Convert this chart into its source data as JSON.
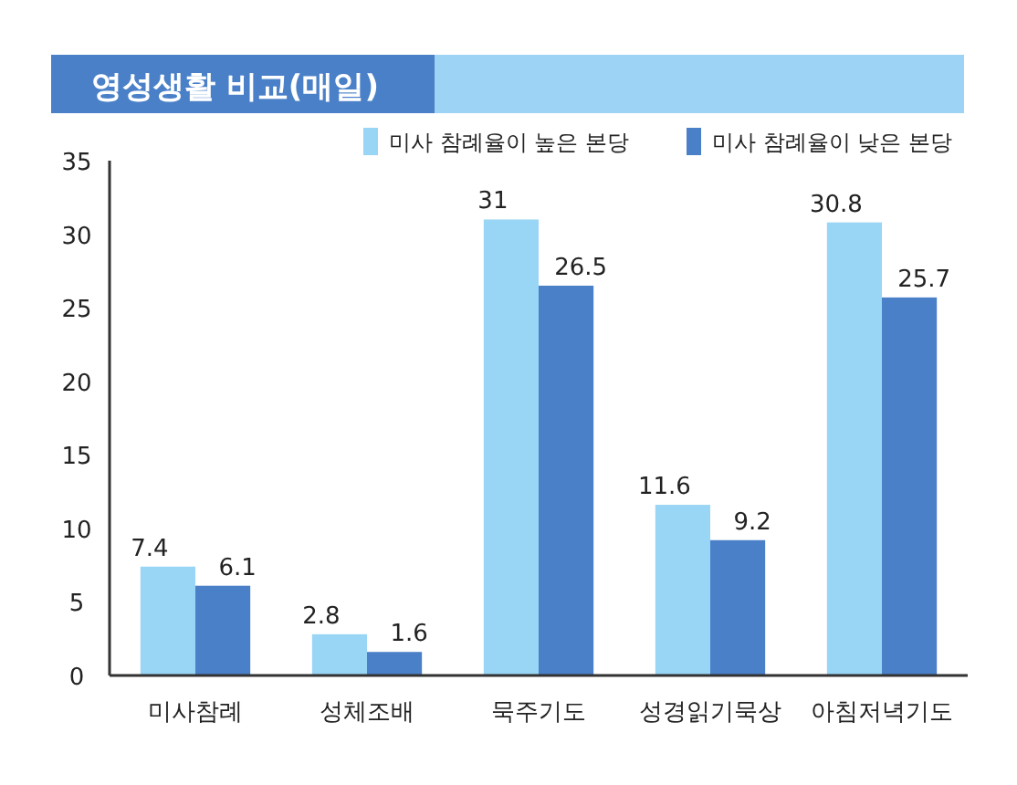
{
  "chart_data": {
    "type": "bar",
    "title": "영성생활 비교(매일)",
    "categories": [
      "미사참례",
      "성체조배",
      "묵주기도",
      "성경읽기묵상",
      "아침저녁기도"
    ],
    "series": [
      {
        "name": "미사 참례율이 높은 본당",
        "color": "#99d5f5",
        "values": [
          7.4,
          2.8,
          31,
          11.6,
          30.8
        ]
      },
      {
        "name": "미사 참례율이 낮은 본당",
        "color": "#4a80c8",
        "values": [
          6.1,
          1.6,
          26.5,
          9.2,
          25.7
        ]
      }
    ],
    "ylim": [
      0,
      35
    ],
    "yticks": [
      0,
      5,
      10,
      15,
      20,
      25,
      30,
      35
    ],
    "data_labels": true,
    "legend": "top right",
    "grid": false
  }
}
